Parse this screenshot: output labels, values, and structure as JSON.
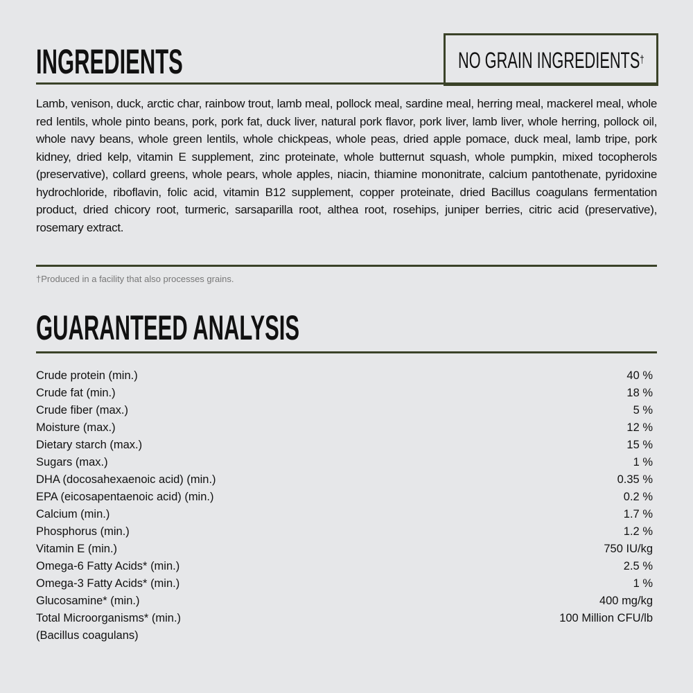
{
  "ingredients": {
    "title": "INGREDIENTS",
    "badge": "NO GRAIN INGREDIENTS",
    "badge_mark": "†",
    "text": "Lamb, venison, duck, arctic char, rainbow trout, lamb meal, pollock meal, sardine meal, herring meal, mackerel meal, whole red lentils, whole pinto beans, pork, pork fat, duck liver, natural pork flavor, pork liver, lamb liver, whole herring, pollock oil, whole navy beans, whole green lentils, whole chickpeas, whole peas, dried apple pomace, duck meal, lamb tripe, pork kidney, dried kelp, vitamin E supplement, zinc proteinate, whole butternut squash, whole pumpkin, mixed tocopherols (preservative), collard greens, whole pears, whole apples, niacin, thiamine mononitrate, calcium pantothenate, pyridoxine hydrochloride, riboflavin, folic acid, vitamin B12 supplement, copper proteinate, dried Bacillus coagulans fermentation product, dried chicory root, turmeric, sarsaparilla root, althea root, rosehips, juniper berries, citric acid (preservative), rosemary extract.",
    "footnote": "†Produced in a facility that also processes grains."
  },
  "analysis": {
    "title": "GUARANTEED ANALYSIS",
    "rows": [
      {
        "label": "Crude protein (min.)",
        "value": "40 %"
      },
      {
        "label": "Crude fat (min.)",
        "value": "18 %"
      },
      {
        "label": "Crude fiber (max.)",
        "value": "5 %"
      },
      {
        "label": "Moisture (max.)",
        "value": "12 %"
      },
      {
        "label": "Dietary starch (max.)",
        "value": "15 %"
      },
      {
        "label": "Sugars (max.)",
        "value": "1 %"
      },
      {
        "label": "DHA (docosahexaenoic acid) (min.)",
        "value": "0.35 %"
      },
      {
        "label": "EPA (eicosapentaenoic acid) (min.)",
        "value": "0.2 %"
      },
      {
        "label": "Calcium (min.)",
        "value": "1.7 %"
      },
      {
        "label": "Phosphorus (min.)",
        "value": "1.2 %"
      },
      {
        "label": "Vitamin E (min.)",
        "value": "750 IU/kg"
      },
      {
        "label": "Omega-6 Fatty Acids* (min.)",
        "value": "2.5 %"
      },
      {
        "label": "Omega-3 Fatty Acids* (min.)",
        "value": "1 %"
      },
      {
        "label": "Glucosamine* (min.)",
        "value": "400 mg/kg"
      },
      {
        "label": "Total Microorganisms* (min.)",
        "value": "100 Million CFU/lb"
      },
      {
        "label": "(Bacillus coagulans)",
        "value": ""
      }
    ]
  },
  "colors": {
    "background": "#e6e7e9",
    "accent": "#3a4228"
  }
}
